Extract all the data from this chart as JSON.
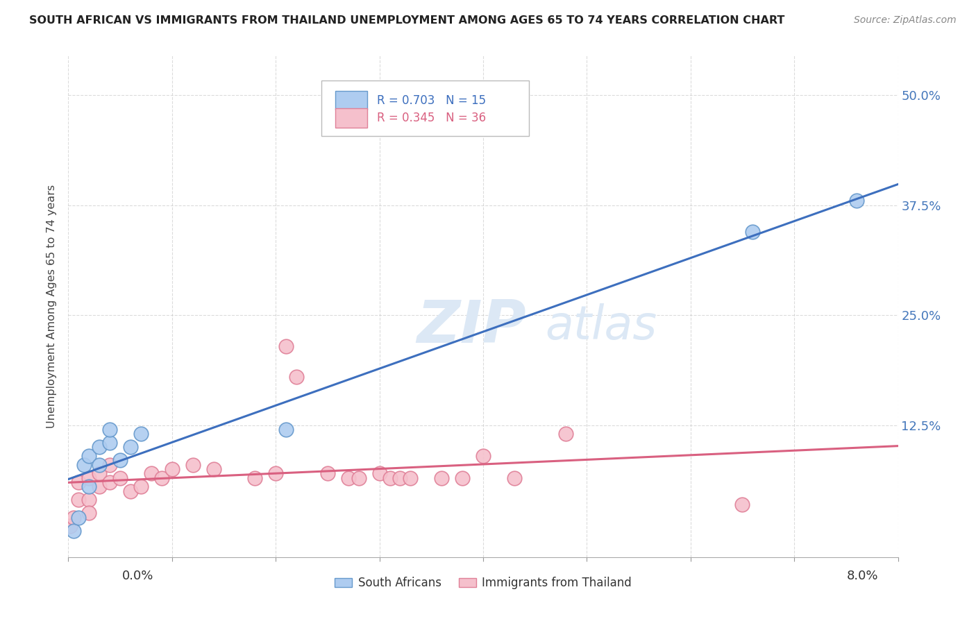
{
  "title": "SOUTH AFRICAN VS IMMIGRANTS FROM THAILAND UNEMPLOYMENT AMONG AGES 65 TO 74 YEARS CORRELATION CHART",
  "source": "Source: ZipAtlas.com",
  "ylabel": "Unemployment Among Ages 65 to 74 years",
  "ytick_values": [
    0.125,
    0.25,
    0.375,
    0.5
  ],
  "ytick_labels": [
    "12.5%",
    "25.0%",
    "37.5%",
    "50.0%"
  ],
  "xlim": [
    0.0,
    0.08
  ],
  "ylim": [
    -0.025,
    0.545
  ],
  "sa_R": "R = 0.703",
  "sa_N": "N = 15",
  "imm_R": "R = 0.345",
  "imm_N": "N = 36",
  "sa_line_color": "#3d6fbe",
  "imm_line_color": "#d96080",
  "sa_marker_facecolor": "#aeccf0",
  "sa_marker_edgecolor": "#6699cc",
  "imm_marker_facecolor": "#f5c0cc",
  "imm_marker_edgecolor": "#e08098",
  "watermark_color": "#dce8f5",
  "background_color": "#ffffff",
  "grid_color": "#cccccc",
  "sa_label": "South Africans",
  "imm_label": "Immigrants from Thailand",
  "south_africans_x": [
    0.0005,
    0.001,
    0.0015,
    0.002,
    0.002,
    0.003,
    0.003,
    0.004,
    0.004,
    0.005,
    0.006,
    0.007,
    0.021,
    0.066,
    0.076
  ],
  "south_africans_y": [
    0.005,
    0.02,
    0.08,
    0.055,
    0.09,
    0.08,
    0.1,
    0.105,
    0.12,
    0.085,
    0.1,
    0.115,
    0.12,
    0.345,
    0.38
  ],
  "immigrants_x": [
    0.0002,
    0.0005,
    0.001,
    0.001,
    0.002,
    0.002,
    0.002,
    0.003,
    0.003,
    0.004,
    0.004,
    0.005,
    0.006,
    0.007,
    0.008,
    0.009,
    0.01,
    0.012,
    0.014,
    0.018,
    0.02,
    0.021,
    0.022,
    0.025,
    0.027,
    0.028,
    0.03,
    0.031,
    0.032,
    0.033,
    0.036,
    0.038,
    0.04,
    0.043,
    0.048,
    0.065
  ],
  "immigrants_y": [
    0.01,
    0.02,
    0.04,
    0.06,
    0.065,
    0.04,
    0.025,
    0.055,
    0.07,
    0.06,
    0.08,
    0.065,
    0.05,
    0.055,
    0.07,
    0.065,
    0.075,
    0.08,
    0.075,
    0.065,
    0.07,
    0.215,
    0.18,
    0.07,
    0.065,
    0.065,
    0.07,
    0.065,
    0.065,
    0.065,
    0.065,
    0.065,
    0.09,
    0.065,
    0.115,
    0.035
  ]
}
